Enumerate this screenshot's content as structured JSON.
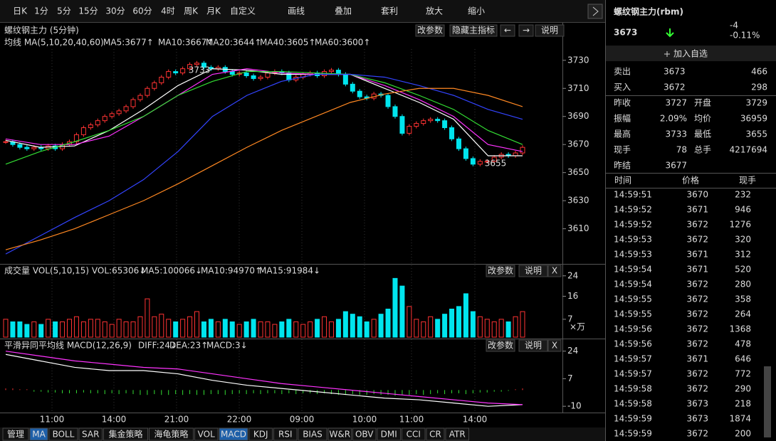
{
  "toolbar": [
    "日K",
    "1分",
    "5分",
    "15分",
    "30分",
    "60分",
    "4时",
    "周K",
    "月K",
    "自定义",
    "画线",
    "叠加",
    "套利",
    "放大",
    "缩小"
  ],
  "kline": {
    "title": "螺纹钢主力 (5分钟)",
    "buttons": [
      "改参数",
      "隐藏主指标",
      "←",
      "→",
      "说明"
    ],
    "ma_title": "均线 MA(5,10,20,40,60)",
    "ma_labels": [
      "MA5:3677↑",
      "MA10:3667↑",
      "MA20:3644↑",
      "MA40:3605↑",
      "MA60:3600↑"
    ],
    "ylim": [
      3587,
      3738
    ],
    "yticks": [
      3730,
      3710,
      3690,
      3670,
      3650,
      3630,
      3610
    ],
    "closes": [
      3672,
      3670,
      3668,
      3667,
      3668,
      3667,
      3669,
      3667,
      3670,
      3672,
      3677,
      3682,
      3684,
      3687,
      3690,
      3692,
      3694,
      3697,
      3702,
      3705,
      3710,
      3714,
      3718,
      3722,
      3721,
      3724,
      3727,
      3728,
      3725,
      3724,
      3725,
      3722,
      3720,
      3721,
      3719,
      3717,
      3718,
      3721,
      3722,
      3721,
      3716,
      3718,
      3720,
      3721,
      3719,
      3722,
      3723,
      3720,
      3713,
      3708,
      3704,
      3703,
      3706,
      3705,
      3697,
      3690,
      3678,
      3683,
      3685,
      3687,
      3688,
      3687,
      3682,
      3674,
      3667,
      3660,
      3656,
      3658,
      3658,
      3661,
      3663,
      3662,
      3664,
      3668
    ],
    "ma_series": [
      {
        "name": "MA5",
        "color": "#ffffff",
        "values": [
          3673,
          3668,
          3669,
          3680,
          3695,
          3712,
          3724,
          3723,
          3720,
          3720,
          3720,
          3710,
          3700,
          3688,
          3662,
          3662
        ]
      },
      {
        "name": "MA10",
        "color": "#ff33ff",
        "values": [
          3674,
          3670,
          3670,
          3676,
          3690,
          3705,
          3720,
          3724,
          3721,
          3720,
          3720,
          3712,
          3702,
          3690,
          3670,
          3665
        ]
      },
      {
        "name": "MA20",
        "color": "#33dd33",
        "values": [
          3656,
          3665,
          3672,
          3680,
          3690,
          3705,
          3715,
          3722,
          3722,
          3721,
          3720,
          3714,
          3705,
          3695,
          3680,
          3670
        ]
      },
      {
        "name": "MA40",
        "color": "#3344ff",
        "values": [
          3592,
          3605,
          3618,
          3630,
          3645,
          3665,
          3690,
          3705,
          3715,
          3720,
          3720,
          3718,
          3712,
          3705,
          3695,
          3688
        ]
      },
      {
        "name": "MA60",
        "color": "#ff8822",
        "values": [
          3595,
          3602,
          3610,
          3620,
          3630,
          3642,
          3655,
          3668,
          3680,
          3690,
          3700,
          3706,
          3710,
          3710,
          3705,
          3697
        ]
      }
    ],
    "high_label": "3733",
    "low_label": "3655"
  },
  "volume": {
    "title": "成交量 VOL(5,10,15) VOL:65306↓",
    "ma_labels": [
      "MA5:100066↓",
      "MA10:94970↑",
      "MA15:91984↓"
    ],
    "buttons": [
      "改参数",
      "说明",
      "X"
    ],
    "unit": "×万",
    "ylim": [
      0,
      27
    ],
    "yticks": [
      24,
      16,
      7
    ],
    "values": [
      7,
      6,
      6,
      5,
      6,
      5,
      7,
      6,
      6,
      7,
      8,
      6,
      7,
      7,
      6,
      5,
      7,
      6,
      6,
      8,
      15,
      8,
      9,
      7,
      6,
      7,
      8,
      10,
      6,
      7,
      6,
      7,
      6,
      5,
      6,
      7,
      6,
      6,
      5,
      6,
      7,
      6,
      5,
      6,
      7,
      8,
      6,
      7,
      10,
      9,
      8,
      6,
      7,
      9,
      11,
      23,
      20,
      12,
      7,
      6,
      8,
      7,
      9,
      11,
      12,
      17,
      10,
      8,
      7,
      6,
      7,
      6,
      8,
      10
    ]
  },
  "macd": {
    "title": "平滑异同平均线 MACD(12,26,9)",
    "labels": [
      "DIFF:24↓",
      "DEA:23↑",
      "MACD:3↓"
    ],
    "buttons": [
      "改参数",
      "说明",
      "X"
    ],
    "ylim": [
      -13,
      30
    ],
    "yticks": [
      24,
      7,
      -10
    ],
    "diff": [
      22,
      18,
      14,
      12,
      12,
      10,
      6,
      3,
      1,
      -1,
      -3,
      -5,
      -6,
      -8,
      -10,
      -9
    ],
    "dea": [
      24,
      21,
      18,
      16,
      14,
      13,
      10,
      7,
      4,
      2,
      0,
      -2,
      -4,
      -6,
      -8,
      -9
    ],
    "bars": [
      1,
      1,
      0.5,
      0.5,
      -1,
      -1,
      -1.5,
      -1.5,
      -2,
      -2,
      -2,
      -1.5,
      -2,
      -2,
      -2.5,
      -2,
      -2.5,
      -2,
      -2.5,
      -3,
      -3,
      -2.5,
      -3,
      -3,
      -2.5,
      -3,
      -2.5,
      -3,
      -3,
      -2.5,
      -2.5,
      -3,
      -2.5,
      -2,
      -2.5,
      -2,
      -2.5,
      -2,
      -2,
      -2.5,
      -2,
      -2.5,
      -2,
      -2,
      -2.5,
      -2,
      -2.5,
      -3,
      -3,
      -2.5,
      -3,
      -3,
      -2.5,
      -3,
      -3,
      -3.5,
      -3,
      -3,
      -2.5,
      -3,
      -2.5,
      -2,
      -2.5,
      -2,
      -2,
      -2.5,
      -2,
      -1.5,
      -1.5,
      -1,
      -1,
      -0.5,
      0.5,
      1
    ]
  },
  "xaxis": [
    "11:00",
    "14:00",
    "21:00",
    "22:00",
    "09:00",
    "10:00",
    "11:00",
    "14:00"
  ],
  "tabs": [
    "管理",
    "MA",
    "BOLL",
    "SAR",
    "集金策略",
    "海龟策略",
    "VOL",
    "MACD",
    "KDJ",
    "RSI",
    "BIAS",
    "W&R",
    "OBV",
    "DMI",
    "CCI",
    "CR",
    "ATR"
  ],
  "panel": {
    "title": "螺纹钢主力(rbm)",
    "price": "3673",
    "change": "-4",
    "change_pct": "-0.11%",
    "add": "加入自选",
    "book": [
      [
        "卖出",
        "3673",
        "466"
      ],
      [
        "买入",
        "3672",
        "298"
      ]
    ],
    "stats": [
      [
        "昨收",
        "3727",
        "开盘",
        "3729"
      ],
      [
        "振幅",
        "2.09%",
        "均价",
        "36959"
      ],
      [
        "最高",
        "3733",
        "最低",
        "3655"
      ],
      [
        "现手",
        "78",
        "总手",
        "4217694"
      ],
      [
        "昨结",
        "3677"
      ]
    ],
    "trades_header": [
      "时间",
      "价格",
      "现手"
    ],
    "trades": [
      [
        "14:59:51",
        "3670",
        "232",
        "#ffffff"
      ],
      [
        "14:59:52",
        "3671",
        "946",
        "#ff3333"
      ],
      [
        "14:59:52",
        "3672",
        "1276",
        "#ff3333"
      ],
      [
        "14:59:53",
        "3672",
        "320",
        "#ffffff"
      ],
      [
        "14:59:53",
        "3671",
        "312",
        "#33ff33"
      ],
      [
        "14:59:54",
        "3671",
        "520",
        "#ffffff"
      ],
      [
        "14:59:54",
        "3672",
        "280",
        "#ff3333"
      ],
      [
        "14:59:55",
        "3672",
        "358",
        "#ffffff"
      ],
      [
        "14:59:55",
        "3672",
        "264",
        "#ffffff"
      ],
      [
        "14:59:56",
        "3672",
        "1368",
        "#ffffff"
      ],
      [
        "14:59:56",
        "3672",
        "478",
        "#ffffff"
      ],
      [
        "14:59:57",
        "3671",
        "646",
        "#33ff33"
      ],
      [
        "14:59:57",
        "3672",
        "772",
        "#ff3333"
      ],
      [
        "14:59:58",
        "3672",
        "290",
        "#ffffff"
      ],
      [
        "14:59:58",
        "3673",
        "218",
        "#ff3333"
      ],
      [
        "14:59:59",
        "3673",
        "1874",
        "#ffffff"
      ],
      [
        "14:59:59",
        "3672",
        "200",
        "#33ff33"
      ]
    ]
  }
}
